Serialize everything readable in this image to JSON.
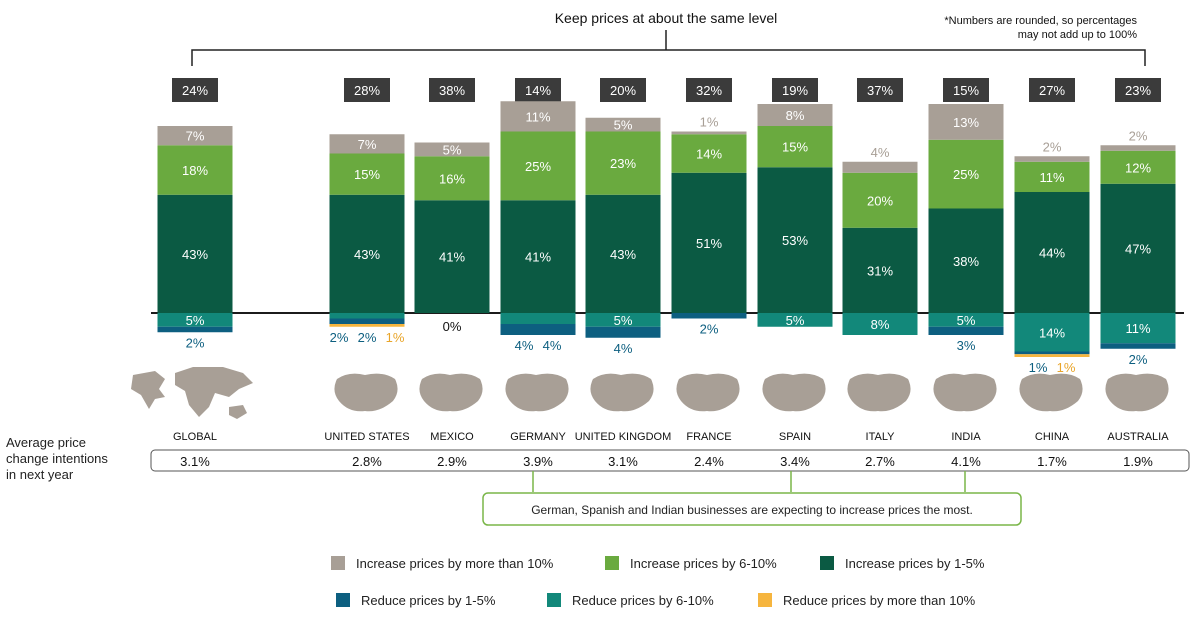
{
  "header": {
    "bracket_label": "Keep prices at about the same level",
    "footnote_line1": "*Numbers are rounded, so percentages",
    "footnote_line2": "may not add up to 100%"
  },
  "row_label": {
    "line1": "Average price",
    "line2": "change intentions",
    "line3": "in next year"
  },
  "callout": "German, Spanish and Indian businesses are expecting to increase prices the most.",
  "colors": {
    "inc_gt10": "#a89f96",
    "inc_6_10": "#6aaa3f",
    "inc_1_5": "#0b5a43",
    "red_1_5": "#0d5f80",
    "red_6_10": "#12887a",
    "red_gt10": "#f6b53e",
    "badge": "#3b3b3b",
    "callout_border": "#7ab648",
    "map_fill": "#a89f96"
  },
  "chart_data": {
    "type": "bar",
    "stacked": true,
    "baseline": "zero line, increases above, reductions below",
    "categories": [
      "GLOBAL",
      "UNITED STATES",
      "MEXICO",
      "GERMANY",
      "UNITED KINGDOM",
      "FRANCE",
      "SPAIN",
      "ITALY",
      "INDIA",
      "CHINA",
      "AUSTRALIA"
    ],
    "same_level_labels": [
      "24%",
      "28%",
      "38%",
      "14%",
      "20%",
      "32%",
      "19%",
      "37%",
      "15%",
      "27%",
      "23%"
    ],
    "average_labels": [
      "3.1%",
      "2.8%",
      "2.9%",
      "3.9%",
      "3.1%",
      "2.4%",
      "3.4%",
      "2.7%",
      "4.1%",
      "1.7%",
      "1.9%"
    ],
    "zero_label": "0%",
    "zero_label_index": 2,
    "series": [
      {
        "name": "Increase prices by more than 10%",
        "key": "inc_gt10",
        "direction": "up",
        "values": [
          7,
          7,
          5,
          11,
          5,
          1,
          8,
          4,
          13,
          2,
          2
        ]
      },
      {
        "name": "Increase prices by 6-10%",
        "key": "inc_6_10",
        "direction": "up",
        "values": [
          18,
          15,
          16,
          25,
          23,
          14,
          15,
          20,
          25,
          11,
          12
        ]
      },
      {
        "name": "Increase prices by 1-5%",
        "key": "inc_1_5",
        "direction": "up",
        "values": [
          43,
          43,
          41,
          41,
          43,
          51,
          53,
          31,
          38,
          44,
          47
        ]
      },
      {
        "name": "Reduce prices by 1-5%",
        "key": "red_1_5",
        "direction": "down",
        "values": [
          2,
          2,
          0,
          4,
          4,
          2,
          0,
          0,
          3,
          1,
          2
        ]
      },
      {
        "name": "Reduce prices by 6-10%",
        "key": "red_6_10",
        "direction": "down",
        "values": [
          5,
          2,
          0,
          4,
          5,
          0,
          5,
          8,
          5,
          14,
          11
        ]
      },
      {
        "name": "Reduce prices by more than 10%",
        "key": "red_gt10",
        "direction": "down",
        "values": [
          0,
          1,
          0,
          0,
          0,
          0,
          0,
          0,
          0,
          1,
          0
        ]
      }
    ],
    "legend_order": [
      "inc_gt10",
      "inc_6_10",
      "inc_1_5",
      "red_1_5",
      "red_6_10",
      "red_gt10"
    ],
    "highlighted": [
      "GERMANY",
      "SPAIN",
      "INDIA"
    ]
  }
}
